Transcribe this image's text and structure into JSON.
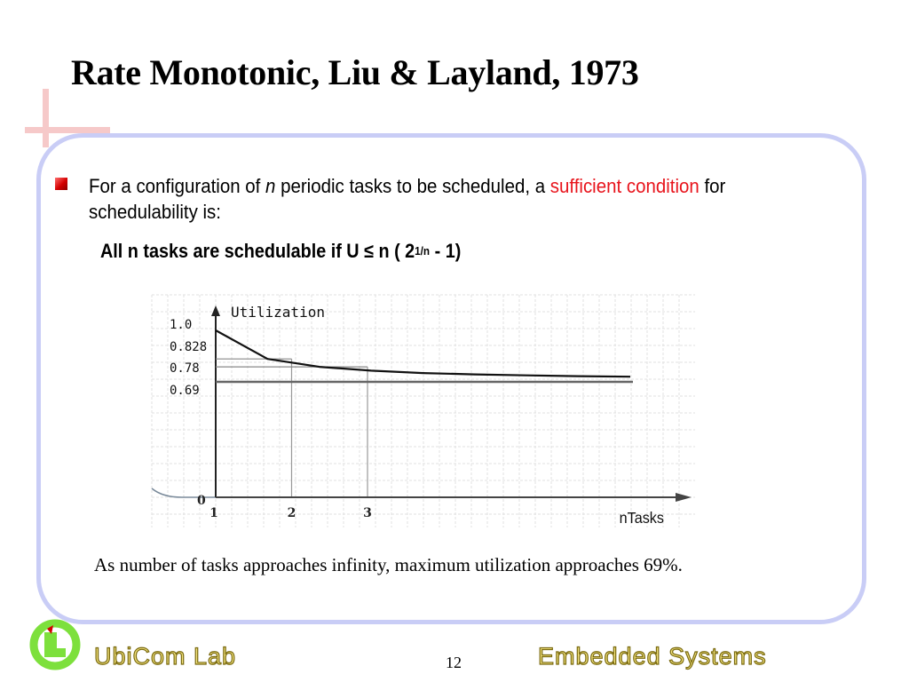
{
  "slide": {
    "title": "Rate Monotonic, Liu & Layland, 1973",
    "bullet": {
      "part1": "For a configuration of ",
      "italic_n": "n",
      "part2": " periodic tasks to be scheduled, a ",
      "highlight": "sufficient condition",
      "part3": " for schedulability is:"
    },
    "condition": {
      "main": "All n tasks are schedulable if U ≤ n ( 2",
      "exponent": "1/n",
      "tail": " - 1)"
    },
    "caption": "As number of tasks approaches infinity, maximum utilization approaches 69%.",
    "page_number": "12",
    "footer": {
      "lab": "UbiCom Lab",
      "right": "Embedded Systems"
    }
  },
  "colors": {
    "accent_red": "#e8141c",
    "frame": "#c9cdf6",
    "cross": "#f6c9c9",
    "logo_green": "#7de03c",
    "footer_text": "#f2e27c"
  },
  "chart_data": {
    "type": "line",
    "title": "",
    "ylabel": "Utilization",
    "xlabel": "nTasks",
    "y_tick_labels": [
      "1.0",
      "0.828",
      "0.78",
      "0.69"
    ],
    "y_origin_label": "0",
    "x_tick_labels": [
      "1",
      "2",
      "3"
    ],
    "x": [
      1,
      2,
      3,
      4,
      5,
      6,
      7,
      8,
      9
    ],
    "series": [
      {
        "values": [
          1.0,
          0.828,
          0.78,
          0.757,
          0.743,
          0.735,
          0.729,
          0.724,
          0.721
        ]
      }
    ],
    "asymptote": 0.69,
    "grid": true
  }
}
